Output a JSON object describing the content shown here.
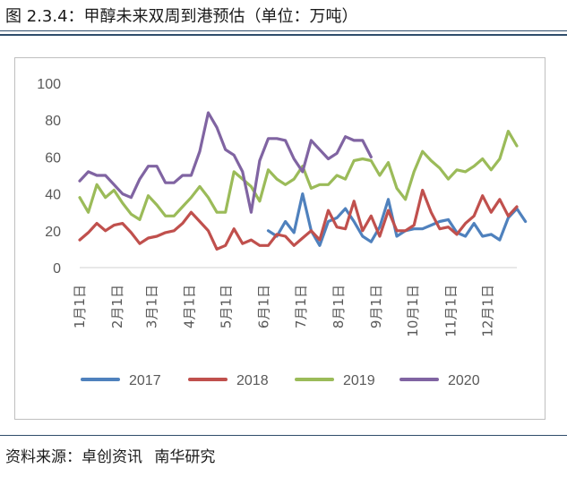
{
  "figure": {
    "title": "图 2.3.4：甲醇未来双周到港预估（单位：万吨）",
    "source_label": "资料来源：卓创资讯",
    "source_org": "南华研究"
  },
  "chart_data": {
    "type": "line",
    "title": "",
    "xlabel": "",
    "ylabel": "",
    "ylim": [
      0,
      100
    ],
    "yticks": [
      0,
      20,
      40,
      60,
      80,
      100
    ],
    "grid": false,
    "legend_position": "bottom",
    "x_count": 52,
    "x_tick_labels": [
      {
        "label": "1月1日",
        "index": 0
      },
      {
        "label": "2月1日",
        "index": 4.4
      },
      {
        "label": "3月1日",
        "index": 8.4
      },
      {
        "label": "4月1日",
        "index": 12.8
      },
      {
        "label": "5月1日",
        "index": 17.1
      },
      {
        "label": "6月1日",
        "index": 21.5
      },
      {
        "label": "7月1日",
        "index": 25.8
      },
      {
        "label": "8月1日",
        "index": 30.2
      },
      {
        "label": "9月1日",
        "index": 34.6
      },
      {
        "label": "10月1日",
        "index": 38.9
      },
      {
        "label": "11月1日",
        "index": 43.3
      },
      {
        "label": "12月1日",
        "index": 47.6
      }
    ],
    "series": [
      {
        "name": "2017",
        "color": "#4f81bd",
        "start_index": 22,
        "values": [
          20,
          17,
          25,
          19,
          40,
          20,
          12,
          25,
          27,
          32,
          25,
          17,
          14,
          22,
          37,
          17,
          20,
          21,
          21,
          23,
          25,
          26,
          19,
          17,
          24,
          17,
          18,
          15,
          27,
          32,
          25
        ]
      },
      {
        "name": "2018",
        "color": "#c0504d",
        "start_index": 0,
        "values": [
          15,
          19,
          24,
          20,
          23,
          24,
          19,
          13,
          16,
          17,
          19,
          20,
          24,
          30,
          25,
          20,
          10,
          12,
          21,
          13,
          15,
          12,
          12,
          18,
          17,
          12,
          16,
          20,
          15,
          31,
          22,
          21,
          36,
          20,
          28,
          17,
          31,
          20,
          20,
          23,
          42,
          30,
          21,
          22,
          18,
          24,
          28,
          39,
          30,
          37,
          28,
          33
        ]
      },
      {
        "name": "2019",
        "color": "#9bbb59",
        "start_index": 0,
        "values": [
          38,
          30,
          45,
          38,
          42,
          35,
          29,
          26,
          39,
          34,
          28,
          28,
          33,
          38,
          44,
          38,
          30,
          30,
          52,
          48,
          44,
          36,
          53,
          48,
          45,
          48,
          55,
          43,
          45,
          45,
          50,
          48,
          58,
          59,
          58,
          50,
          57,
          43,
          37,
          52,
          63,
          58,
          54,
          48,
          53,
          52,
          55,
          59,
          53,
          59,
          74,
          66
        ]
      },
      {
        "name": "2020",
        "color": "#8064a2",
        "start_index": 0,
        "values": [
          47,
          52,
          50,
          50,
          45,
          40,
          38,
          48,
          55,
          55,
          46,
          46,
          50,
          50,
          63,
          84,
          76,
          64,
          61,
          52,
          30,
          58,
          70,
          70,
          69,
          59,
          52,
          69,
          64,
          59,
          62,
          71,
          69,
          69,
          60
        ]
      }
    ]
  }
}
